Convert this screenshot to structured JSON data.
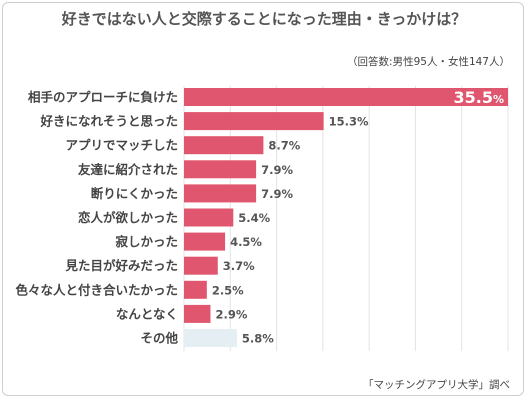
{
  "title": "好きではない人と交際することになった理由・きっかけは？",
  "subtitle": "（回答数:男性95人・女性147人）",
  "source": "「マッチングアプリ大学」調べ",
  "colors": {
    "bar": "#e0566e",
    "bar_other": "#e4eef3",
    "grid": "#e3e3e3",
    "label_text": "#444444",
    "value_text": "#555555"
  },
  "chart_data": {
    "type": "bar",
    "orientation": "horizontal",
    "categories": [
      "相手のアプローチに負けた",
      "好きになれそうと思った",
      "アプリでマッチした",
      "友達に紹介された",
      "断りにくかった",
      "恋人が欲しかった",
      "寂しかった",
      "見た目が好みだった",
      "色々な人と付き合いたかった",
      "なんとなく",
      "その他"
    ],
    "values": [
      35.5,
      15.3,
      8.7,
      7.9,
      7.9,
      5.4,
      4.5,
      3.7,
      2.5,
      2.9,
      5.8
    ],
    "value_labels": [
      "35.5",
      "15.3%",
      "8.7%",
      "7.9%",
      "7.9%",
      "5.4%",
      "4.5%",
      "3.7%",
      "2.5%",
      "2.9%",
      "5.8%"
    ],
    "first_label_suffix": "%",
    "xlim": [
      0,
      35.5
    ],
    "grid": true,
    "legend": "none"
  }
}
